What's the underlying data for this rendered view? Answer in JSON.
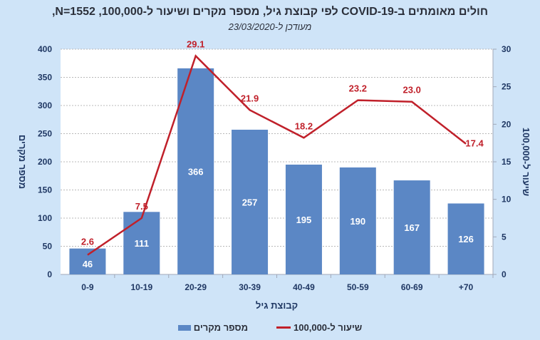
{
  "chart_data": {
    "type": "bar+line",
    "title": "חולים מאומתים ב-COVID-19 לפי קבוצת גיל, מספר מקרים ושיעור ל-100,000, N=1552,",
    "subtitle": "מעודכן ל-23/03/2020",
    "xlabel": "קבוצת גיל",
    "ylabel_left": "מספר מקרים",
    "ylabel_right": "שיעור ל-100,000",
    "categories": [
      "0-9",
      "10-19",
      "20-29",
      "30-39",
      "40-49",
      "50-59",
      "60-69",
      "+70"
    ],
    "series": [
      {
        "name": "מספר מקרים",
        "type": "bar",
        "axis": "left",
        "color": "#5b87c5",
        "values": [
          46,
          111,
          366,
          257,
          195,
          190,
          167,
          126
        ]
      },
      {
        "name": "שיעור ל-100,000",
        "type": "line",
        "axis": "right",
        "color": "#c0202a",
        "values": [
          2.6,
          7.5,
          29.1,
          21.9,
          18.2,
          23.2,
          23.0,
          17.4
        ]
      }
    ],
    "ylim_left": [
      0,
      400
    ],
    "yticks_left": [
      0,
      50,
      100,
      150,
      200,
      250,
      300,
      350,
      400
    ],
    "ylim_right": [
      0,
      30
    ],
    "yticks_right": [
      0,
      5,
      10,
      15,
      20,
      25,
      30
    ],
    "grid": true,
    "legend_position": "bottom"
  }
}
